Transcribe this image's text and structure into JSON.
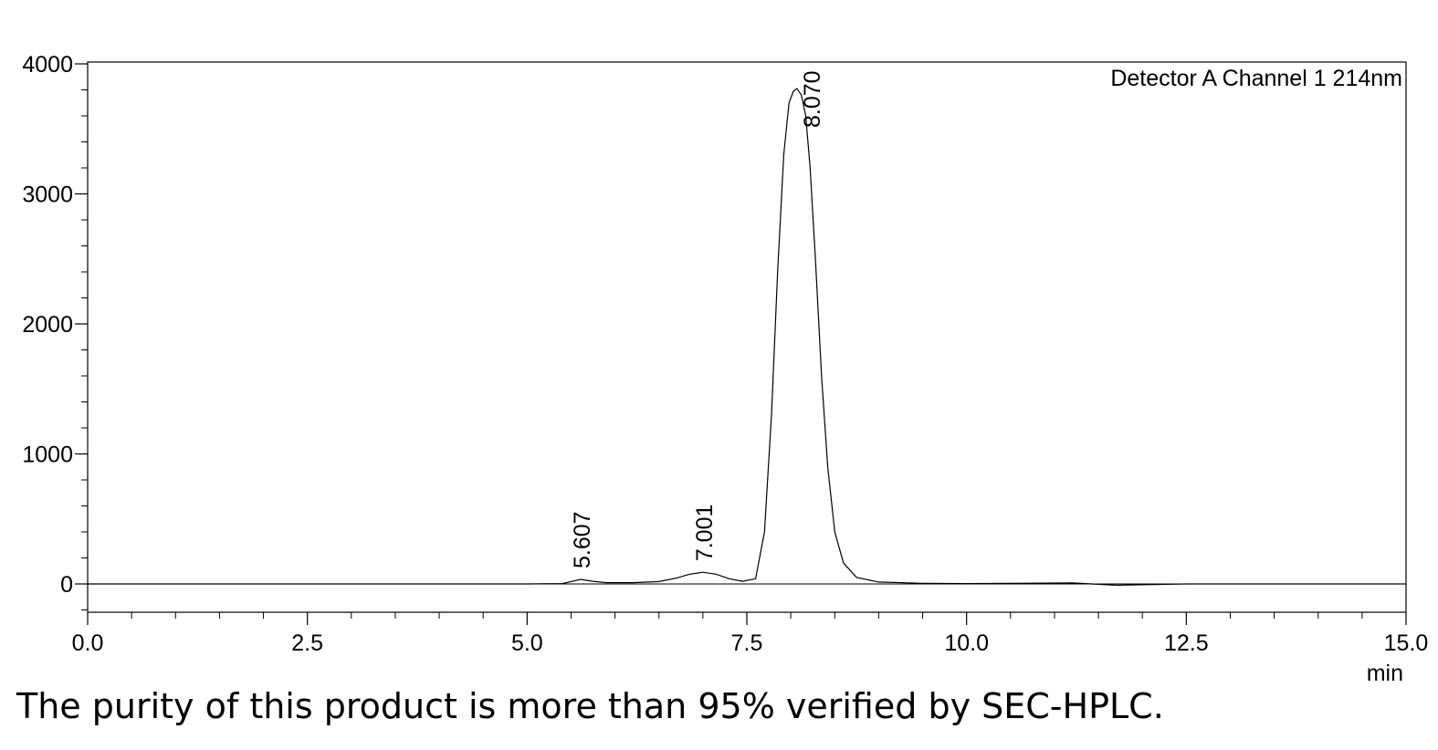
{
  "chart_data": {
    "type": "line",
    "legend_text": "Detector A Channel 1 214nm",
    "legend_position": "top-right",
    "xlabel": "min",
    "ylabel": "",
    "xlim": [
      0,
      15
    ],
    "ylim": [
      -220,
      4000
    ],
    "x_ticks": [
      0,
      2.5,
      5,
      7.5,
      10,
      12.5,
      15
    ],
    "x_tick_labels": [
      "0.0",
      "2.5",
      "5.0",
      "7.5",
      "10.0",
      "12.5",
      "15.0"
    ],
    "y_ticks": [
      0,
      1000,
      2000,
      3000,
      4000
    ],
    "y_tick_labels": [
      "0",
      "1000",
      "2000",
      "3000",
      "4000"
    ],
    "baseline": 0,
    "peaks": [
      {
        "label": "5.607",
        "x": 5.607,
        "y": 35
      },
      {
        "label": "7.001",
        "x": 7.001,
        "y": 90
      },
      {
        "label": "8.070",
        "x": 8.07,
        "y": 3810
      }
    ],
    "series": [
      {
        "x": [
          0.0,
          5.0,
          5.4,
          5.5,
          5.607,
          5.75,
          5.9,
          6.2,
          6.5,
          6.7,
          6.85,
          7.001,
          7.15,
          7.3,
          7.45,
          7.6,
          7.7,
          7.78,
          7.85,
          7.92,
          7.98,
          8.03,
          8.07,
          8.12,
          8.17,
          8.22,
          8.28,
          8.35,
          8.42,
          8.5,
          8.6,
          8.75,
          9.0,
          9.5,
          10.0,
          11.2,
          11.7,
          12.5,
          15.0
        ],
        "y": [
          0,
          0,
          3,
          18,
          35,
          20,
          10,
          10,
          18,
          45,
          75,
          90,
          75,
          40,
          20,
          40,
          400,
          1300,
          2400,
          3300,
          3700,
          3790,
          3810,
          3760,
          3600,
          3200,
          2500,
          1600,
          900,
          400,
          160,
          50,
          15,
          5,
          3,
          8,
          -10,
          0,
          0
        ]
      }
    ]
  },
  "caption": "The purity of this product is more than 95% verified by SEC-HPLC."
}
